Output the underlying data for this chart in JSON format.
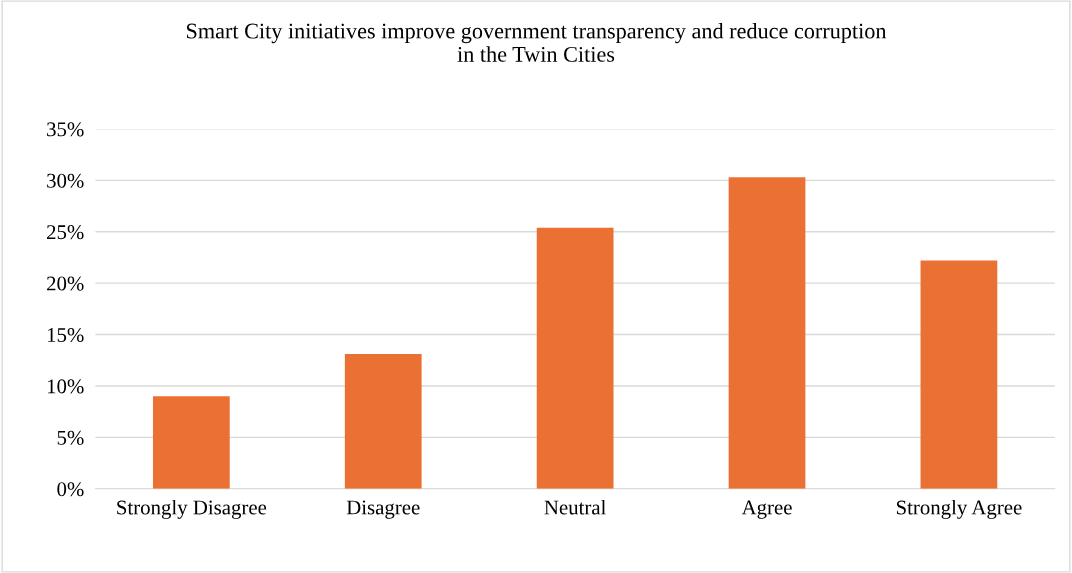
{
  "chart_data": {
    "type": "bar",
    "title": "Smart City initiatives improve government transparency and reduce corruption\nin the Twin Cities",
    "categories": [
      "Strongly Disagree",
      "Disagree",
      "Neutral",
      "Agree",
      "Strongly Agree"
    ],
    "values": [
      9.0,
      13.1,
      25.4,
      30.3,
      22.2
    ],
    "color": "#ea7133",
    "ylim": [
      0,
      35
    ],
    "yticks": [
      {
        "value": 0,
        "label": "0%"
      },
      {
        "value": 5,
        "label": "5%"
      },
      {
        "value": 10,
        "label": "10%"
      },
      {
        "value": 15,
        "label": "15%"
      },
      {
        "value": 20,
        "label": "20%"
      },
      {
        "value": 25,
        "label": "25%"
      },
      {
        "value": 30,
        "label": "30%"
      },
      {
        "value": 35,
        "label": "35%"
      }
    ],
    "grid": "y",
    "legend": false
  }
}
